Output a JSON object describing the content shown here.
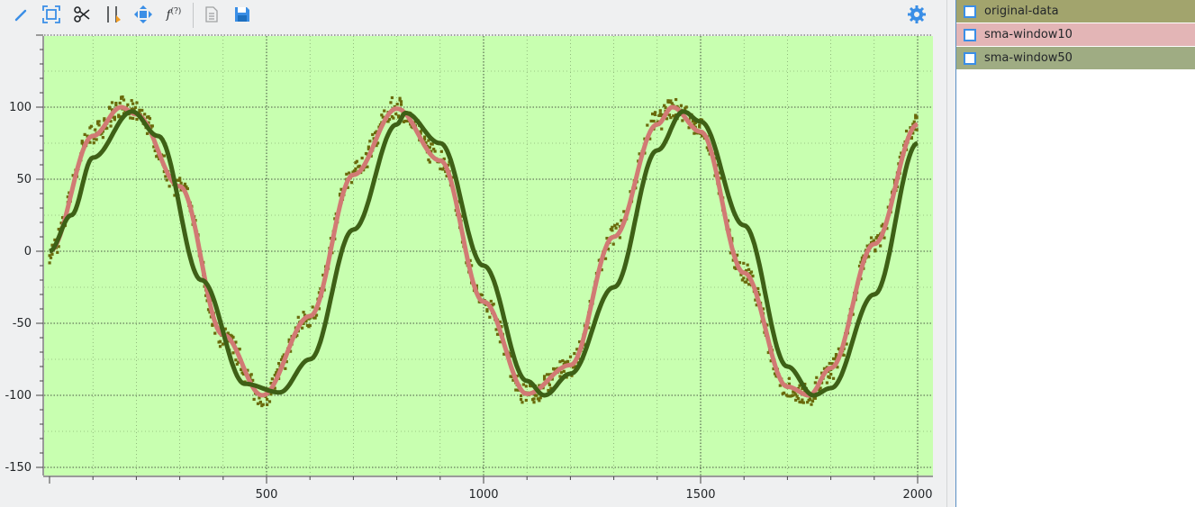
{
  "toolbar": {
    "icons": [
      "pen-icon",
      "zoom-fit-icon",
      "scissors-icon",
      "marker-icon",
      "pan-icon",
      "function-icon",
      "copy-icon",
      "save-icon",
      "settings-icon"
    ],
    "function_label": "f",
    "function_sup": "(?)"
  },
  "legend": {
    "items": [
      {
        "label": "original-data",
        "color": "#a2a46d",
        "checked": false
      },
      {
        "label": "sma-window10",
        "color": "#e3b5b6",
        "checked": false
      },
      {
        "label": "sma-window50",
        "color": "#9fac83",
        "checked": false
      }
    ]
  },
  "chart_data": {
    "type": "scatter",
    "plot_background": "#c8ffb0",
    "xlim": [
      0,
      2000
    ],
    "ylim": [
      -150,
      150
    ],
    "x_ticks": [
      500,
      1000,
      1500,
      2000
    ],
    "y_ticks": [
      100,
      50,
      0,
      -50,
      -100,
      -150
    ],
    "grid": true,
    "series": [
      {
        "name": "original-data",
        "color": "#6a6a0c",
        "style": "noisy-markers",
        "x": [
          0,
          100,
          165,
          200,
          300,
          400,
          490,
          600,
          700,
          800,
          900,
          1000,
          1100,
          1200,
          1300,
          1400,
          1435,
          1500,
          1600,
          1700,
          1750,
          1800,
          1900,
          2000
        ],
        "y": [
          0,
          82,
          100,
          96,
          45,
          -60,
          -100,
          -45,
          55,
          100,
          65,
          -35,
          -100,
          -80,
          10,
          90,
          100,
          85,
          -15,
          -95,
          -100,
          -82,
          5,
          90
        ]
      },
      {
        "name": "sma-window10",
        "color": "#d17a74",
        "style": "line",
        "x": [
          0,
          100,
          165,
          200,
          300,
          400,
          490,
          600,
          700,
          800,
          900,
          1000,
          1100,
          1200,
          1300,
          1400,
          1435,
          1500,
          1600,
          1700,
          1750,
          1800,
          1900,
          2000
        ],
        "y": [
          0,
          80,
          100,
          95,
          45,
          -58,
          -100,
          -45,
          53,
          99,
          63,
          -35,
          -99,
          -79,
          10,
          88,
          100,
          83,
          -15,
          -94,
          -100,
          -81,
          5,
          88
        ]
      },
      {
        "name": "sma-window50",
        "color": "#3e6016",
        "style": "line",
        "x": [
          0,
          50,
          100,
          190,
          250,
          350,
          450,
          530,
          600,
          700,
          800,
          820,
          900,
          1000,
          1100,
          1140,
          1200,
          1300,
          1400,
          1460,
          1500,
          1600,
          1700,
          1760,
          1800,
          1900,
          2000
        ],
        "y": [
          0,
          25,
          65,
          97,
          80,
          -20,
          -92,
          -98,
          -75,
          15,
          88,
          96,
          75,
          -10,
          -90,
          -100,
          -85,
          -25,
          70,
          97,
          90,
          18,
          -80,
          -100,
          -95,
          -30,
          75
        ]
      }
    ]
  }
}
